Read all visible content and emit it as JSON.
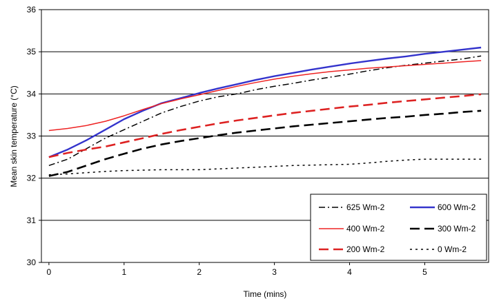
{
  "chart_data": {
    "type": "line",
    "title": "",
    "xlabel": "Time (mins)",
    "ylabel": "Mean skin temperature (°C)",
    "xlim": [
      -0.1,
      5.85
    ],
    "ylim": [
      30,
      36
    ],
    "x_ticks": [
      0,
      1,
      2,
      3,
      4,
      5
    ],
    "y_ticks": [
      30,
      31,
      32,
      33,
      34,
      35,
      36
    ],
    "grid": "horizontal",
    "legend_position": "bottom-right",
    "x": [
      0,
      0.25,
      0.5,
      0.75,
      1,
      1.25,
      1.5,
      1.75,
      2,
      2.25,
      2.5,
      2.75,
      3,
      3.25,
      3.5,
      3.75,
      4,
      4.25,
      4.5,
      4.75,
      5,
      5.25,
      5.5,
      5.75
    ],
    "series": [
      {
        "name": "625 Wm-2",
        "color": "#000000",
        "style": "dashdot",
        "values": [
          32.3,
          32.45,
          32.7,
          32.95,
          33.15,
          33.35,
          33.55,
          33.7,
          33.83,
          33.93,
          34.0,
          34.1,
          34.18,
          34.25,
          34.33,
          34.4,
          34.47,
          34.55,
          34.62,
          34.68,
          34.73,
          34.78,
          34.83,
          34.9
        ]
      },
      {
        "name": "600 Wm-2",
        "color": "#3333cc",
        "style": "solid",
        "values": [
          32.5,
          32.68,
          32.9,
          33.15,
          33.4,
          33.6,
          33.78,
          33.9,
          34.02,
          34.13,
          34.23,
          34.33,
          34.42,
          34.5,
          34.58,
          34.65,
          34.72,
          34.78,
          34.84,
          34.89,
          34.95,
          35.0,
          35.05,
          35.1
        ]
      },
      {
        "name": "400 Wm-2",
        "color": "#ee2222",
        "style": "solid",
        "values": [
          33.13,
          33.18,
          33.25,
          33.35,
          33.48,
          33.63,
          33.77,
          33.88,
          33.98,
          34.08,
          34.18,
          34.27,
          34.35,
          34.42,
          34.48,
          34.53,
          34.57,
          34.61,
          34.64,
          34.67,
          34.7,
          34.73,
          34.76,
          34.79
        ]
      },
      {
        "name": "300 Wm-2",
        "color": "#000000",
        "style": "dash",
        "values": [
          32.05,
          32.15,
          32.3,
          32.45,
          32.58,
          32.7,
          32.8,
          32.88,
          32.95,
          33.02,
          33.08,
          33.13,
          33.18,
          33.23,
          33.27,
          33.31,
          33.35,
          33.39,
          33.43,
          33.46,
          33.5,
          33.53,
          33.57,
          33.6
        ]
      },
      {
        "name": "200 Wm-2",
        "color": "#dd2222",
        "style": "dash",
        "values": [
          32.5,
          32.6,
          32.68,
          32.75,
          32.85,
          32.95,
          33.05,
          33.14,
          33.22,
          33.3,
          33.37,
          33.43,
          33.49,
          33.55,
          33.6,
          33.65,
          33.7,
          33.74,
          33.79,
          33.83,
          33.87,
          33.91,
          33.95,
          33.99
        ]
      },
      {
        "name": "0 Wm-2",
        "color": "#000000",
        "style": "dot",
        "values": [
          32.08,
          32.1,
          32.13,
          32.16,
          32.18,
          32.19,
          32.2,
          32.2,
          32.2,
          32.22,
          32.24,
          32.26,
          32.28,
          32.3,
          32.31,
          32.32,
          32.33,
          32.36,
          32.4,
          32.43,
          32.45,
          32.45,
          32.45,
          32.45
        ]
      }
    ]
  }
}
